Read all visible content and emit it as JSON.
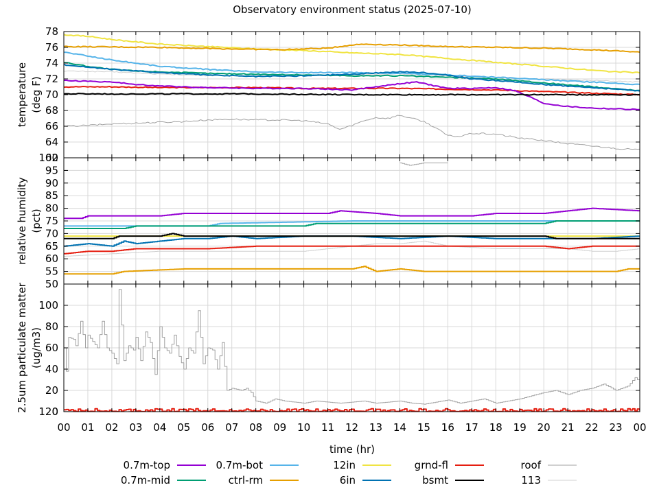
{
  "chart_data": {
    "type": "line",
    "title": "Observatory environment status (2025-07-10)",
    "xlabel": "time (hr)",
    "x_ticks": [
      "00",
      "01",
      "02",
      "03",
      "04",
      "05",
      "06",
      "07",
      "08",
      "09",
      "10",
      "11",
      "12",
      "13",
      "14",
      "15",
      "16",
      "17",
      "18",
      "19",
      "20",
      "21",
      "22",
      "23",
      "00"
    ],
    "x_range": [
      0,
      24
    ],
    "panels": [
      {
        "id": "temperature",
        "ylabel_line1": "temperature",
        "ylabel_line2": "(deg F)",
        "ylim": [
          62,
          78
        ],
        "y_ticks": [
          64,
          66,
          68,
          70,
          72,
          74,
          76,
          78
        ],
        "corner_label": "62",
        "series": [
          {
            "name": "0.7m-top",
            "color": "#9400d3",
            "x": [
              0,
              1,
              2,
              3,
              4,
              6,
              8,
              10,
              11,
              12,
              13,
              14,
              14.7,
              15.5,
              16,
              17,
              18,
              18.8,
              19.5,
              20,
              21,
              22,
              23,
              24
            ],
            "y": [
              71.8,
              71.7,
              71.6,
              71.3,
              71.1,
              70.9,
              70.8,
              70.8,
              70.7,
              70.6,
              71.0,
              71.4,
              71.6,
              71.1,
              70.8,
              70.8,
              70.9,
              70.5,
              69.6,
              68.9,
              68.5,
              68.3,
              68.2,
              68.1
            ]
          },
          {
            "name": "0.7m-mid",
            "color": "#009e73",
            "x": [
              0,
              1,
              2,
              3,
              4,
              6,
              8,
              10,
              12,
              14,
              16,
              18,
              20,
              22,
              24
            ],
            "y": [
              74.1,
              73.6,
              73.2,
              73.0,
              72.9,
              72.7,
              72.6,
              72.5,
              72.4,
              72.4,
              72.2,
              72.0,
              71.5,
              71.0,
              70.5
            ]
          },
          {
            "name": "0.7m-bot",
            "color": "#56b4e9",
            "x": [
              0,
              1,
              2,
              3,
              4,
              6,
              8,
              10,
              12,
              14,
              16,
              18,
              20,
              22,
              24
            ],
            "y": [
              75.4,
              74.9,
              74.4,
              74.0,
              73.6,
              73.2,
              72.9,
              72.8,
              72.8,
              72.7,
              72.5,
              72.2,
              71.9,
              71.6,
              71.3
            ]
          },
          {
            "name": "ctrl-rm",
            "color": "#e69f00",
            "x": [
              0,
              4,
              7,
              9,
              10,
              11,
              12,
              12.5,
              14,
              16,
              18,
              20,
              22,
              24
            ],
            "y": [
              76.1,
              76.0,
              75.8,
              75.7,
              75.8,
              75.9,
              76.3,
              76.4,
              76.3,
              76.1,
              76.0,
              75.9,
              75.7,
              75.4
            ]
          },
          {
            "name": "12in",
            "color": "#f0e442",
            "x": [
              0,
              1,
              2,
              3,
              4,
              6,
              8,
              10,
              12,
              14,
              16,
              18,
              20,
              22,
              23,
              24
            ],
            "y": [
              77.6,
              77.4,
              77.0,
              76.7,
              76.4,
              76.1,
              75.8,
              75.6,
              75.3,
              75.1,
              74.6,
              74.1,
              73.6,
              73.1,
              72.9,
              72.8
            ]
          },
          {
            "name": "6in",
            "color": "#0072b2",
            "x": [
              0,
              1,
              2,
              3,
              4,
              6,
              8,
              10,
              11,
              12,
              14,
              15,
              16,
              17,
              18,
              20,
              22,
              24
            ],
            "y": [
              73.8,
              73.5,
              73.2,
              73.0,
              72.8,
              72.5,
              72.3,
              72.4,
              72.5,
              72.6,
              72.9,
              72.8,
              72.5,
              72.0,
              71.8,
              71.3,
              70.9,
              70.5
            ]
          },
          {
            "name": "grnd-fl",
            "color": "#e51e10",
            "x": [
              0,
              2,
              4,
              6,
              8,
              10,
              12,
              14,
              16,
              18,
              20,
              22,
              24
            ],
            "y": [
              71.0,
              71.0,
              70.9,
              70.9,
              70.9,
              70.8,
              70.8,
              70.8,
              70.7,
              70.6,
              70.4,
              70.2,
              70.0
            ]
          },
          {
            "name": "bsmt",
            "color": "#000000",
            "x": [
              0,
              4,
              8,
              12,
              16,
              18,
              20,
              24
            ],
            "y": [
              70.1,
              70.1,
              70.1,
              70.0,
              70.0,
              70.0,
              70.0,
              70.0
            ]
          },
          {
            "name": "roof",
            "color": "#a0a0a0",
            "x": [
              0,
              1,
              2,
              3,
              4,
              5,
              6,
              7,
              8,
              9,
              10,
              11,
              11.5,
              12,
              12.5,
              13,
              13.5,
              14,
              14.5,
              15,
              15.5,
              16,
              16.5,
              17,
              18,
              19,
              20,
              21,
              22,
              23,
              24
            ],
            "y": [
              66.0,
              66.1,
              66.3,
              66.4,
              66.5,
              66.6,
              66.8,
              66.9,
              66.8,
              66.8,
              66.7,
              66.3,
              65.6,
              66.1,
              66.7,
              67.1,
              67.0,
              67.4,
              67.0,
              66.6,
              65.8,
              64.8,
              64.7,
              65.1,
              65.0,
              64.5,
              64.2,
              63.8,
              63.5,
              63.2,
              63.0
            ]
          },
          {
            "name": "113",
            "color": "#d0d0d0",
            "x": [
              0,
              2,
              4,
              6,
              8,
              10,
              12,
              14,
              16,
              18,
              20,
              22,
              24
            ],
            "y": [
              73.0,
              72.9,
              72.6,
              72.4,
              72.4,
              72.5,
              72.5,
              72.6,
              72.4,
              72.2,
              72.0,
              71.8,
              71.6
            ]
          }
        ]
      },
      {
        "id": "humidity",
        "ylabel_line1": "relative humidity",
        "ylabel_line2": "(pct)",
        "ylim": [
          50,
          100
        ],
        "y_ticks": [
          55,
          60,
          65,
          70,
          75,
          80,
          85,
          90,
          95,
          100
        ],
        "corner_label": "50",
        "series": [
          {
            "name": "0.7m-top",
            "color": "#9400d3",
            "x": [
              0,
              0.7,
              1,
              4,
              5,
              11,
              11.5,
              13,
              14,
              17,
              18,
              20,
              21,
              22,
              24
            ],
            "y": [
              76,
              76,
              77,
              77,
              78,
              78,
              79,
              78,
              77,
              77,
              78,
              78,
              79,
              80,
              79
            ]
          },
          {
            "name": "0.7m-mid",
            "color": "#009e73",
            "x": [
              0,
              2.5,
              3,
              10,
              10.5,
              15,
              15.5,
              20,
              20.5,
              24
            ],
            "y": [
              72,
              72,
              73,
              73,
              74,
              74,
              74,
              74,
              75,
              75
            ]
          },
          {
            "name": "0.7m-bot",
            "color": "#56b4e9",
            "x": [
              0,
              6,
              6.5,
              12,
              24
            ],
            "y": [
              73,
              73,
              74,
              75,
              75
            ]
          },
          {
            "name": "ctrl-rm",
            "color": "#e69f00",
            "x": [
              0,
              2,
              2.5,
              5,
              12,
              12.5,
              13,
              14,
              15,
              16,
              23,
              23.5,
              24
            ],
            "y": [
              54,
              54,
              55,
              56,
              56,
              57,
              55,
              56,
              55,
              55,
              55,
              56,
              56
            ]
          },
          {
            "name": "12in",
            "color": "#f0e442",
            "x": [
              0,
              5,
              10,
              15,
              20,
              24
            ],
            "y": [
              69,
              69,
              69,
              69,
              69,
              69
            ]
          },
          {
            "name": "6in",
            "color": "#0072b2",
            "x": [
              0,
              1,
              2,
              2.5,
              3,
              4,
              5,
              6,
              7,
              8,
              10,
              12,
              14,
              16,
              18,
              20,
              22,
              24
            ],
            "y": [
              65,
              66,
              65,
              67,
              66,
              67,
              68,
              68,
              69,
              68,
              69,
              69,
              68,
              69,
              68,
              68,
              68,
              69
            ]
          },
          {
            "name": "grnd-fl",
            "color": "#e51e10",
            "x": [
              0,
              1,
              2,
              3,
              4,
              6,
              8,
              10,
              12,
              16,
              20,
              21,
              22,
              23,
              24
            ],
            "y": [
              62,
              63,
              63,
              64,
              64,
              64,
              65,
              65,
              65,
              65,
              65,
              64,
              65,
              65,
              65
            ]
          },
          {
            "name": "bsmt",
            "color": "#000000",
            "x": [
              0,
              2,
              2.3,
              4,
              4.5,
              5,
              6,
              10,
              15,
              20,
              20.5,
              24
            ],
            "y": [
              68,
              68,
              69,
              69,
              70,
              69,
              69,
              69,
              69,
              69,
              68,
              68
            ]
          },
          {
            "name": "roof",
            "color": "#a0a0a0",
            "x": [
              14,
              14.4,
              15,
              15.5,
              16
            ],
            "y": [
              98,
              97,
              98,
              98,
              98
            ]
          },
          {
            "name": "113",
            "color": "#d0d0d0",
            "x": [
              0,
              2,
              4,
              6,
              8,
              10,
              11,
              12,
              13,
              14,
              15,
              16,
              18,
              20,
              21,
              22,
              23,
              24
            ],
            "y": [
              61,
              62,
              63,
              63,
              63,
              63,
              64,
              65,
              66,
              66,
              67,
              65,
              64,
              64,
              64,
              63,
              63,
              64
            ]
          }
        ]
      },
      {
        "id": "pm25",
        "ylabel_line1": "2.5um particulate matter",
        "ylabel_line2": "(ug/m3)",
        "ylim": [
          0,
          120
        ],
        "y_ticks": [
          0,
          20,
          40,
          60,
          80,
          100
        ],
        "corner_label": "120",
        "series": [
          {
            "name": "grnd-fl",
            "color": "#e51e10",
            "x": [
              0,
              2,
              4,
              6,
              8,
              10,
              12,
              14,
              16,
              18,
              20,
              22,
              24
            ],
            "y": [
              1,
              1,
              1,
              1,
              1,
              1,
              1,
              1,
              1,
              1,
              1,
              1,
              1
            ]
          },
          {
            "name": "roof",
            "color": "#a0a0a0",
            "x": [
              0,
              0.1,
              0.2,
              0.4,
              0.5,
              0.7,
              0.9,
              1,
              1.2,
              1.4,
              1.6,
              1.8,
              2,
              2.2,
              2.3,
              2.5,
              2.7,
              2.9,
              3,
              3.2,
              3.4,
              3.6,
              3.8,
              4,
              4.2,
              4.4,
              4.6,
              4.8,
              5,
              5.2,
              5.4,
              5.6,
              5.8,
              6,
              6.2,
              6.4,
              6.6,
              6.8,
              7,
              7.4,
              7.6,
              7.8,
              8,
              8.4,
              8.8,
              9.2,
              9.6,
              10,
              10.5,
              11,
              11.5,
              12,
              12.5,
              13,
              13.5,
              14,
              14.5,
              15,
              15.5,
              16,
              16.5,
              17,
              17.5,
              18,
              18.5,
              19,
              19.5,
              20,
              20.5,
              21,
              21.5,
              22,
              22.5,
              23,
              23.5,
              23.8,
              24
            ],
            "y": [
              60,
              38,
              70,
              68,
              62,
              85,
              60,
              72,
              66,
              60,
              85,
              60,
              55,
              45,
              115,
              48,
              62,
              58,
              70,
              48,
              75,
              65,
              35,
              80,
              60,
              55,
              72,
              52,
              40,
              60,
              55,
              95,
              45,
              60,
              58,
              40,
              65,
              20,
              22,
              20,
              22,
              18,
              10,
              8,
              12,
              10,
              9,
              8,
              10,
              9,
              8,
              9,
              10,
              8,
              9,
              10,
              8,
              7,
              9,
              11,
              8,
              10,
              12,
              8,
              10,
              12,
              15,
              18,
              20,
              16,
              20,
              22,
              26,
              20,
              24,
              32,
              28
            ]
          },
          {
            "name": "113",
            "color": "#d0d0d0",
            "x": [
              0,
              4,
              8,
              12,
              16,
              20,
              24
            ],
            "y": [
              0,
              0,
              0,
              0,
              0,
              0,
              0
            ]
          }
        ]
      }
    ],
    "legend": [
      {
        "name": "0.7m-top",
        "color": "#9400d3"
      },
      {
        "name": "0.7m-bot",
        "color": "#56b4e9"
      },
      {
        "name": "12in",
        "color": "#f0e442"
      },
      {
        "name": "grnd-fl",
        "color": "#e51e10"
      },
      {
        "name": "roof",
        "color": "#a0a0a0"
      },
      {
        "name": "0.7m-mid",
        "color": "#009e73"
      },
      {
        "name": "ctrl-rm",
        "color": "#e69f00"
      },
      {
        "name": "6in",
        "color": "#0072b2"
      },
      {
        "name": "bsmt",
        "color": "#000000"
      },
      {
        "name": "113",
        "color": "#d0d0d0"
      }
    ]
  }
}
